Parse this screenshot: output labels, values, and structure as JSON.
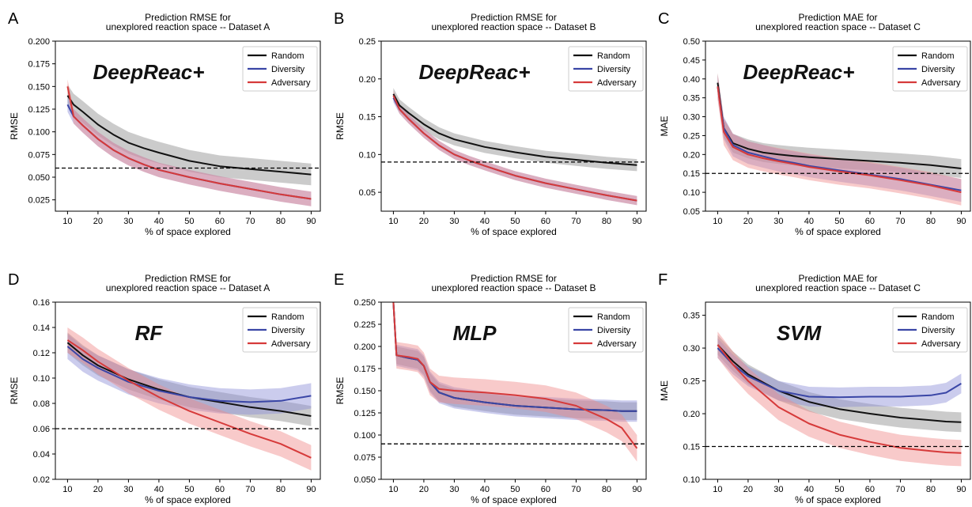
{
  "figure": {
    "colors": {
      "Random": "#111111",
      "Diversity": "#3a46a6",
      "Adversary": "#d63a3a",
      "band_Random": "#8c8c8c",
      "band_Diversity": "#8b8fd6",
      "band_Adversary": "#f08a8a",
      "threshold": "#000000"
    }
  },
  "chart_data": [
    {
      "panel": "A",
      "type": "line",
      "model": "DeepReac+",
      "title": [
        "Prediction RMSE for",
        "unexplored reaction space -- Dataset A"
      ],
      "xlabel": "% of space explored",
      "ylabel": "RMSE",
      "xlim": [
        6,
        93
      ],
      "ylim": [
        0.0125,
        0.2
      ],
      "xticks": [
        10,
        20,
        30,
        40,
        50,
        60,
        70,
        80,
        90
      ],
      "yticks": [
        0.025,
        0.05,
        0.075,
        0.1,
        0.125,
        0.15,
        0.175,
        0.2
      ],
      "ytick_labels": [
        "0.025",
        "0.050",
        "0.075",
        "0.100",
        "0.125",
        "0.150",
        "0.175",
        "0.200"
      ],
      "threshold": 0.06,
      "legend_position": "top-right",
      "x": [
        10,
        12,
        15,
        20,
        25,
        30,
        35,
        40,
        50,
        60,
        70,
        80,
        90
      ],
      "series": [
        {
          "name": "Random",
          "values": [
            0.14,
            0.13,
            0.122,
            0.108,
            0.097,
            0.088,
            0.082,
            0.077,
            0.068,
            0.062,
            0.059,
            0.056,
            0.053
          ],
          "band": 0.012
        },
        {
          "name": "Diversity",
          "values": [
            0.13,
            0.117,
            0.107,
            0.092,
            0.08,
            0.071,
            0.064,
            0.058,
            0.05,
            0.043,
            0.037,
            0.031,
            0.026
          ],
          "band": 0.008
        },
        {
          "name": "Adversary",
          "values": [
            0.15,
            0.117,
            0.107,
            0.092,
            0.08,
            0.071,
            0.064,
            0.058,
            0.05,
            0.043,
            0.037,
            0.031,
            0.026
          ],
          "band": 0.008
        }
      ]
    },
    {
      "panel": "B",
      "type": "line",
      "model": "DeepReac+",
      "title": [
        "Prediction RMSE for",
        "unexplored reaction space -- Dataset B"
      ],
      "xlabel": "% of space explored",
      "ylabel": "RMSE",
      "xlim": [
        6,
        93
      ],
      "ylim": [
        0.025,
        0.25
      ],
      "xticks": [
        10,
        20,
        30,
        40,
        50,
        60,
        70,
        80,
        90
      ],
      "yticks": [
        0.05,
        0.1,
        0.15,
        0.2,
        0.25
      ],
      "ytick_labels": [
        "0.05",
        "0.10",
        "0.15",
        "0.20",
        "0.25"
      ],
      "threshold": 0.09,
      "legend_position": "top-right",
      "x": [
        10,
        12,
        15,
        20,
        25,
        30,
        35,
        40,
        50,
        60,
        70,
        80,
        90
      ],
      "series": [
        {
          "name": "Random",
          "values": [
            0.18,
            0.165,
            0.155,
            0.14,
            0.128,
            0.12,
            0.115,
            0.11,
            0.103,
            0.097,
            0.093,
            0.089,
            0.086
          ],
          "band": 0.008
        },
        {
          "name": "Diversity",
          "values": [
            0.175,
            0.16,
            0.147,
            0.128,
            0.112,
            0.1,
            0.092,
            0.085,
            0.072,
            0.062,
            0.054,
            0.046,
            0.039
          ],
          "band": 0.006
        },
        {
          "name": "Adversary",
          "values": [
            0.178,
            0.16,
            0.147,
            0.128,
            0.112,
            0.1,
            0.092,
            0.085,
            0.072,
            0.062,
            0.054,
            0.046,
            0.039
          ],
          "band": 0.006
        }
      ]
    },
    {
      "panel": "C",
      "type": "line",
      "model": "DeepReac+",
      "title": [
        "Prediction MAE for",
        "unexplored reaction space -- Dataset C"
      ],
      "xlabel": "% of space explored",
      "ylabel": "MAE",
      "xlim": [
        6,
        93
      ],
      "ylim": [
        0.05,
        0.5
      ],
      "xticks": [
        10,
        20,
        30,
        40,
        50,
        60,
        70,
        80,
        90
      ],
      "yticks": [
        0.05,
        0.1,
        0.15,
        0.2,
        0.25,
        0.3,
        0.35,
        0.4,
        0.45,
        0.5
      ],
      "ytick_labels": [
        "0.05",
        "0.10",
        "0.15",
        "0.20",
        "0.25",
        "0.30",
        "0.35",
        "0.40",
        "0.45",
        "0.50"
      ],
      "threshold": 0.15,
      "legend_position": "top-right",
      "x": [
        10,
        12,
        15,
        20,
        25,
        30,
        35,
        40,
        50,
        60,
        70,
        80,
        90
      ],
      "series": [
        {
          "name": "Random",
          "values": [
            0.39,
            0.27,
            0.23,
            0.215,
            0.205,
            0.2,
            0.196,
            0.193,
            0.188,
            0.183,
            0.178,
            0.172,
            0.163
          ],
          "band": 0.025
        },
        {
          "name": "Diversity",
          "values": [
            0.38,
            0.27,
            0.225,
            0.205,
            0.195,
            0.185,
            0.178,
            0.17,
            0.158,
            0.147,
            0.135,
            0.12,
            0.105
          ],
          "band": 0.03
        },
        {
          "name": "Adversary",
          "values": [
            0.38,
            0.26,
            0.22,
            0.2,
            0.19,
            0.182,
            0.175,
            0.167,
            0.155,
            0.145,
            0.132,
            0.118,
            0.1
          ],
          "band": 0.035
        }
      ]
    },
    {
      "panel": "D",
      "type": "line",
      "model": "RF",
      "title": [
        "Prediction RMSE for",
        "unexplored reaction space -- Dataset A"
      ],
      "xlabel": "% of space explored",
      "ylabel": "RMSE",
      "xlim": [
        6,
        93
      ],
      "ylim": [
        0.02,
        0.16
      ],
      "xticks": [
        10,
        20,
        30,
        40,
        50,
        60,
        70,
        80,
        90
      ],
      "yticks": [
        0.02,
        0.04,
        0.06,
        0.08,
        0.1,
        0.12,
        0.14,
        0.16
      ],
      "ytick_labels": [
        "0.02",
        "0.04",
        "0.06",
        "0.08",
        "0.10",
        "0.12",
        "0.14",
        "0.16"
      ],
      "threshold": 0.06,
      "legend_position": "top-right",
      "x": [
        10,
        15,
        20,
        30,
        40,
        50,
        60,
        70,
        80,
        90
      ],
      "series": [
        {
          "name": "Random",
          "values": [
            0.128,
            0.118,
            0.11,
            0.099,
            0.091,
            0.085,
            0.081,
            0.077,
            0.074,
            0.07
          ],
          "band": 0.008
        },
        {
          "name": "Diversity",
          "values": [
            0.125,
            0.115,
            0.108,
            0.097,
            0.09,
            0.085,
            0.082,
            0.081,
            0.082,
            0.086
          ],
          "band": 0.01
        },
        {
          "name": "Adversary",
          "values": [
            0.13,
            0.122,
            0.113,
            0.098,
            0.085,
            0.074,
            0.065,
            0.056,
            0.048,
            0.037
          ],
          "band": 0.01
        }
      ]
    },
    {
      "panel": "E",
      "type": "line",
      "model": "MLP",
      "title": [
        "Prediction RMSE for",
        "unexplored reaction space -- Dataset B"
      ],
      "xlabel": "% of space explored",
      "ylabel": "RMSE",
      "xlim": [
        6,
        93
      ],
      "ylim": [
        0.05,
        0.25
      ],
      "xticks": [
        10,
        20,
        30,
        40,
        50,
        60,
        70,
        80,
        90
      ],
      "yticks": [
        0.05,
        0.075,
        0.1,
        0.125,
        0.15,
        0.175,
        0.2,
        0.225,
        0.25
      ],
      "ytick_labels": [
        "0.050",
        "0.075",
        "0.100",
        "0.125",
        "0.150",
        "0.175",
        "0.200",
        "0.225",
        "0.250"
      ],
      "threshold": 0.09,
      "legend_position": "top-right",
      "x": [
        10,
        11,
        15,
        18,
        20,
        22,
        25,
        30,
        40,
        50,
        60,
        70,
        80,
        85,
        90
      ],
      "series": [
        {
          "name": "Random",
          "values": [
            0.25,
            0.19,
            0.187,
            0.185,
            0.178,
            0.16,
            0.148,
            0.142,
            0.137,
            0.133,
            0.131,
            0.129,
            0.128,
            0.127,
            0.127
          ],
          "band": 0.01
        },
        {
          "name": "Diversity",
          "values": [
            0.25,
            0.19,
            0.187,
            0.185,
            0.178,
            0.16,
            0.148,
            0.142,
            0.137,
            0.133,
            0.131,
            0.129,
            0.128,
            0.127,
            0.127
          ],
          "band": 0.012
        },
        {
          "name": "Adversary",
          "values": [
            0.25,
            0.19,
            0.188,
            0.186,
            0.178,
            0.16,
            0.152,
            0.15,
            0.148,
            0.145,
            0.141,
            0.133,
            0.118,
            0.108,
            0.085
          ],
          "band": 0.015
        }
      ]
    },
    {
      "panel": "F",
      "type": "line",
      "model": "SVM",
      "title": [
        "Prediction MAE for",
        "unexplored reaction space -- Dataset C"
      ],
      "xlabel": "% of space explored",
      "ylabel": "MAE",
      "xlim": [
        6,
        93
      ],
      "ylim": [
        0.1,
        0.37
      ],
      "xticks": [
        10,
        20,
        30,
        40,
        50,
        60,
        70,
        80,
        90
      ],
      "yticks": [
        0.1,
        0.15,
        0.2,
        0.25,
        0.3,
        0.35
      ],
      "ytick_labels": [
        "0.10",
        "0.15",
        "0.20",
        "0.25",
        "0.30",
        "0.35"
      ],
      "threshold": 0.15,
      "legend_position": "top-right",
      "x": [
        10,
        15,
        20,
        30,
        40,
        50,
        60,
        70,
        80,
        85,
        90
      ],
      "series": [
        {
          "name": "Random",
          "values": [
            0.305,
            0.28,
            0.26,
            0.235,
            0.218,
            0.207,
            0.2,
            0.194,
            0.19,
            0.188,
            0.187
          ],
          "band": 0.015
        },
        {
          "name": "Diversity",
          "values": [
            0.3,
            0.275,
            0.257,
            0.235,
            0.226,
            0.225,
            0.226,
            0.226,
            0.228,
            0.232,
            0.246
          ],
          "band": 0.015
        },
        {
          "name": "Adversary",
          "values": [
            0.305,
            0.275,
            0.25,
            0.21,
            0.185,
            0.168,
            0.157,
            0.148,
            0.143,
            0.141,
            0.14
          ],
          "band": 0.02
        }
      ]
    }
  ]
}
